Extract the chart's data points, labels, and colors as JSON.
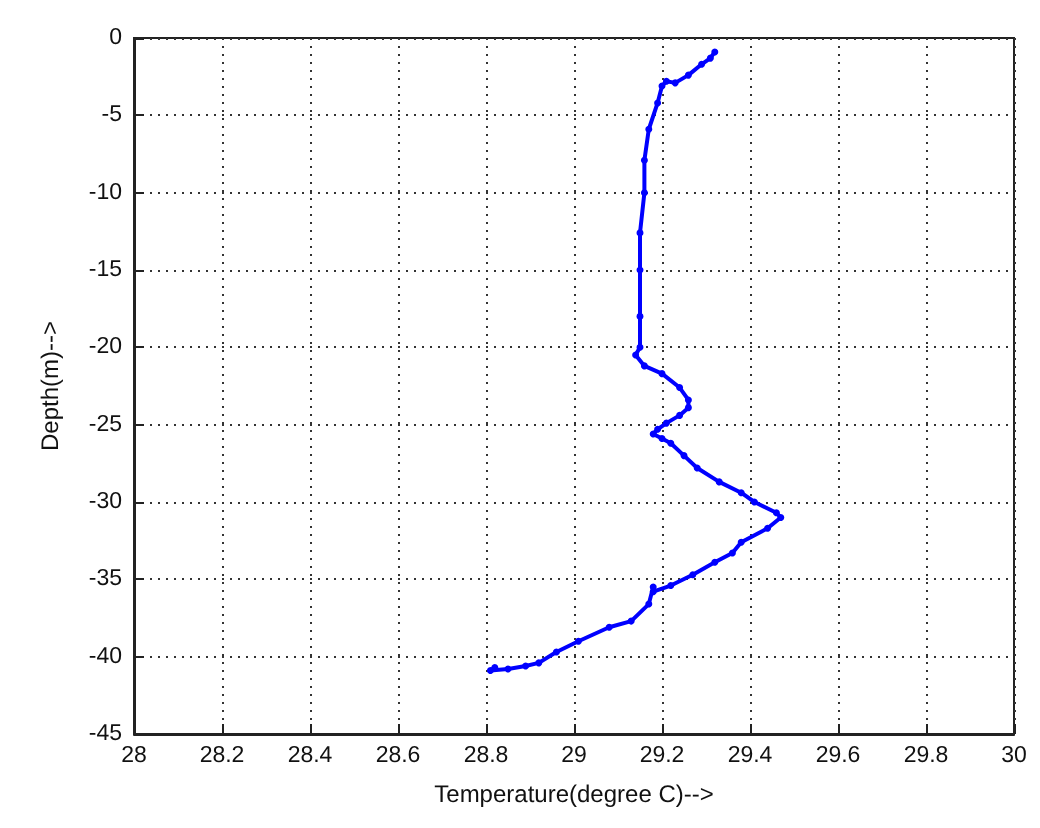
{
  "chart_data": {
    "type": "line",
    "xlabel": "Temperature(degree C)-->",
    "ylabel": "Depth(m)-->",
    "x": [
      29.32,
      29.31,
      29.29,
      29.26,
      29.23,
      29.21,
      29.2,
      29.19,
      29.17,
      29.16,
      29.16,
      29.15,
      29.15,
      29.15,
      29.15,
      29.14,
      29.16,
      29.2,
      29.24,
      29.26,
      29.26,
      29.24,
      29.21,
      29.19,
      29.18,
      29.2,
      29.22,
      29.25,
      29.28,
      29.33,
      29.38,
      29.41,
      29.46,
      29.47,
      29.44,
      29.38,
      29.36,
      29.32,
      29.27,
      29.22,
      29.18,
      29.18,
      29.17,
      29.13,
      29.08,
      29.01,
      28.96,
      28.92,
      28.89,
      28.85,
      28.81,
      28.82
    ],
    "values": [
      -0.9,
      -1.3,
      -1.7,
      -2.4,
      -2.9,
      -2.8,
      -3.1,
      -4.2,
      -5.9,
      -7.9,
      -10.0,
      -12.6,
      -15,
      -18,
      -20,
      -20.5,
      -21.2,
      -21.7,
      -22.6,
      -23.4,
      -23.9,
      -24.4,
      -24.9,
      -25.3,
      -25.6,
      -25.9,
      -26.2,
      -27.0,
      -27.8,
      -28.7,
      -29.4,
      -30.0,
      -30.7,
      -31.0,
      -31.7,
      -32.6,
      -33.3,
      -33.9,
      -34.7,
      -35.4,
      -35.8,
      -35.5,
      -36.6,
      -37.7,
      -38.1,
      -39.0,
      -39.7,
      -40.4,
      -40.6,
      -40.8,
      -40.9,
      -40.7
    ],
    "color": "#0000ff",
    "marker": "circle",
    "line_style": "solid",
    "xlim": [
      28,
      30
    ],
    "xticks": [
      28,
      28.2,
      28.4,
      28.6,
      28.8,
      29,
      29.2,
      29.4,
      29.6,
      29.8,
      30
    ],
    "ylim": [
      -45,
      0
    ],
    "yticks": [
      -45,
      -40,
      -35,
      -30,
      -25,
      -20,
      -15,
      -10,
      -5,
      0
    ],
    "grid": true
  }
}
